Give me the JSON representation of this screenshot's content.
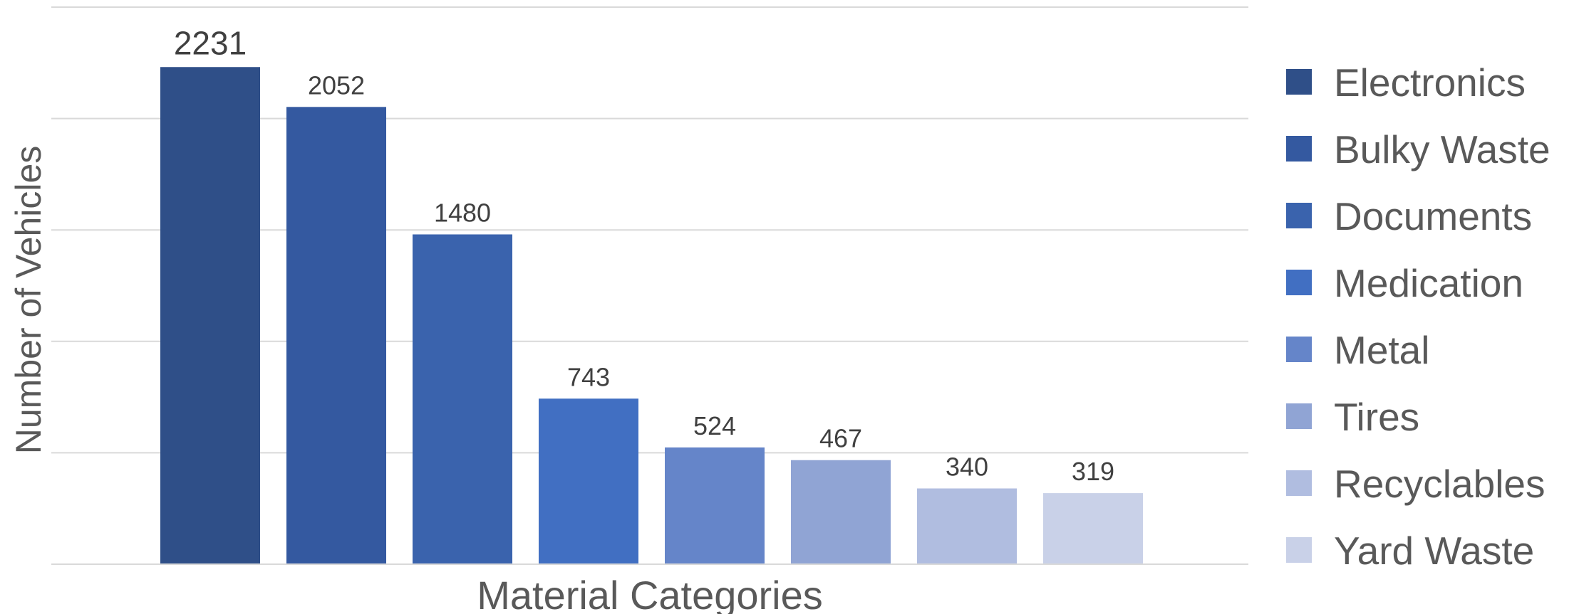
{
  "chart_data": {
    "type": "bar",
    "title": "",
    "xlabel": "Material Categories",
    "ylabel": "Number of Vehicles",
    "ylim": [
      0,
      2500
    ],
    "grid": true,
    "legend": "right",
    "categories": [
      "Electronics",
      "Bulky Waste",
      "Documents",
      "Medication",
      "Metal",
      "Tires",
      "Recyclables",
      "Yard Waste"
    ],
    "values": [
      2231,
      2052,
      1480,
      743,
      524,
      467,
      340,
      319
    ],
    "colors": [
      "#2f4f88",
      "#3459a0",
      "#3a63ad",
      "#416fc2",
      "#6585c9",
      "#90a4d4",
      "#b0bde0",
      "#c9d1e8"
    ]
  }
}
